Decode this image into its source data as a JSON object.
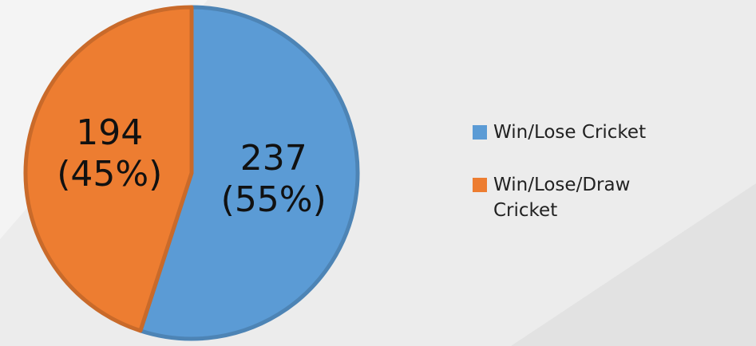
{
  "chart_data": {
    "type": "pie",
    "categories": [
      "Win/Lose Cricket",
      "Win/Lose/Draw Cricket"
    ],
    "values": [
      237,
      194
    ],
    "value_labels": [
      "237\n(55%)",
      "194\n(45%)"
    ],
    "colors": [
      "#5b9bd5",
      "#ed7d31"
    ],
    "legend": "right"
  }
}
